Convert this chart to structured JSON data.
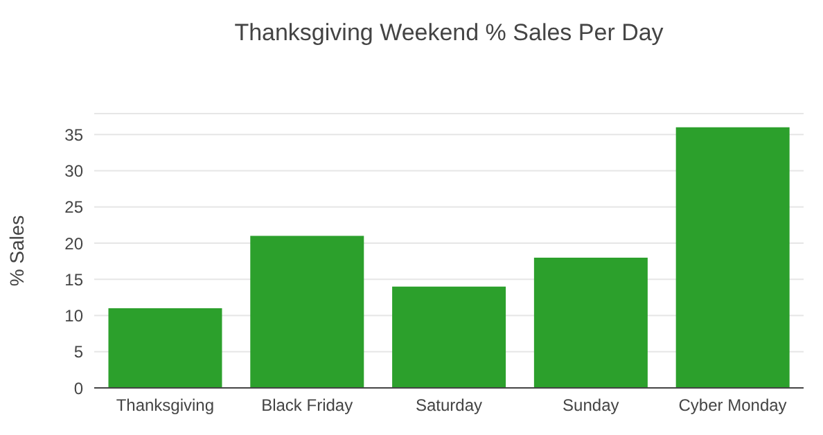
{
  "chart_data": {
    "type": "bar",
    "title": "Thanksgiving Weekend % Sales Per Day",
    "ylabel": "% Sales",
    "categories": [
      "Thanksgiving",
      "Black Friday",
      "Saturday",
      "Sunday",
      "Cyber Monday"
    ],
    "values": [
      11,
      21,
      14,
      18,
      36
    ],
    "color": "#2ca02c",
    "ylim": [
      0,
      37.9
    ],
    "yticks": [
      0,
      5,
      10,
      15,
      20,
      25,
      30,
      35
    ],
    "grid": "y"
  }
}
